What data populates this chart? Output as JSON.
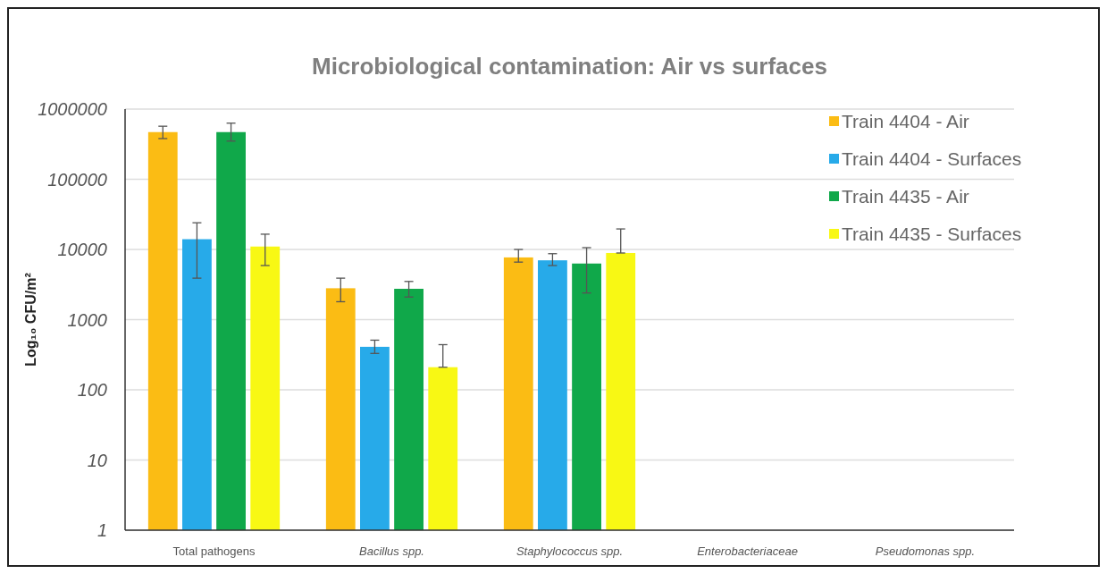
{
  "chart_data": {
    "type": "bar",
    "title": "Microbiological contamination: Air vs surfaces",
    "ylabel": "Log₁₀ CFU/m²",
    "categories": [
      "Total pathogens",
      "Bacillus spp.",
      "Staphylococcus spp.",
      "Enterobacteriaceae",
      "Pseudomonas spp."
    ],
    "series": [
      {
        "name": "Train 4404 - Air",
        "color": "#fbbc14",
        "values": [
          470000,
          2800,
          7700,
          null,
          null
        ],
        "errors": [
          [
            380000,
            570000
          ],
          [
            1800,
            3900
          ],
          [
            6600,
            10000
          ],
          null,
          null
        ]
      },
      {
        "name": "Train 4404 - Surfaces",
        "color": "#27aae9",
        "values": [
          14000,
          410,
          7000,
          null,
          null
        ],
        "errors": [
          [
            3900,
            24000
          ],
          [
            330,
            510
          ],
          [
            5900,
            8700
          ],
          null,
          null
        ]
      },
      {
        "name": "Train 4435 - Air",
        "color": "#10a84a",
        "values": [
          470000,
          2750,
          6300,
          null,
          null
        ],
        "errors": [
          [
            350000,
            630000
          ],
          [
            2100,
            3500
          ],
          [
            2400,
            10600
          ],
          null,
          null
        ]
      },
      {
        "name": "Train 4435 - Surfaces",
        "color": "#f8f814",
        "values": [
          11000,
          210,
          8900,
          null,
          null
        ],
        "errors": [
          [
            5900,
            16500
          ],
          [
            210,
            440
          ],
          [
            8900,
            19600
          ],
          null,
          null
        ]
      }
    ],
    "log": true,
    "ylim": [
      1,
      1000000
    ],
    "yticks": [
      1,
      10,
      100,
      1000,
      10000,
      100000,
      1000000
    ],
    "grid": "y",
    "legend": "top right"
  }
}
